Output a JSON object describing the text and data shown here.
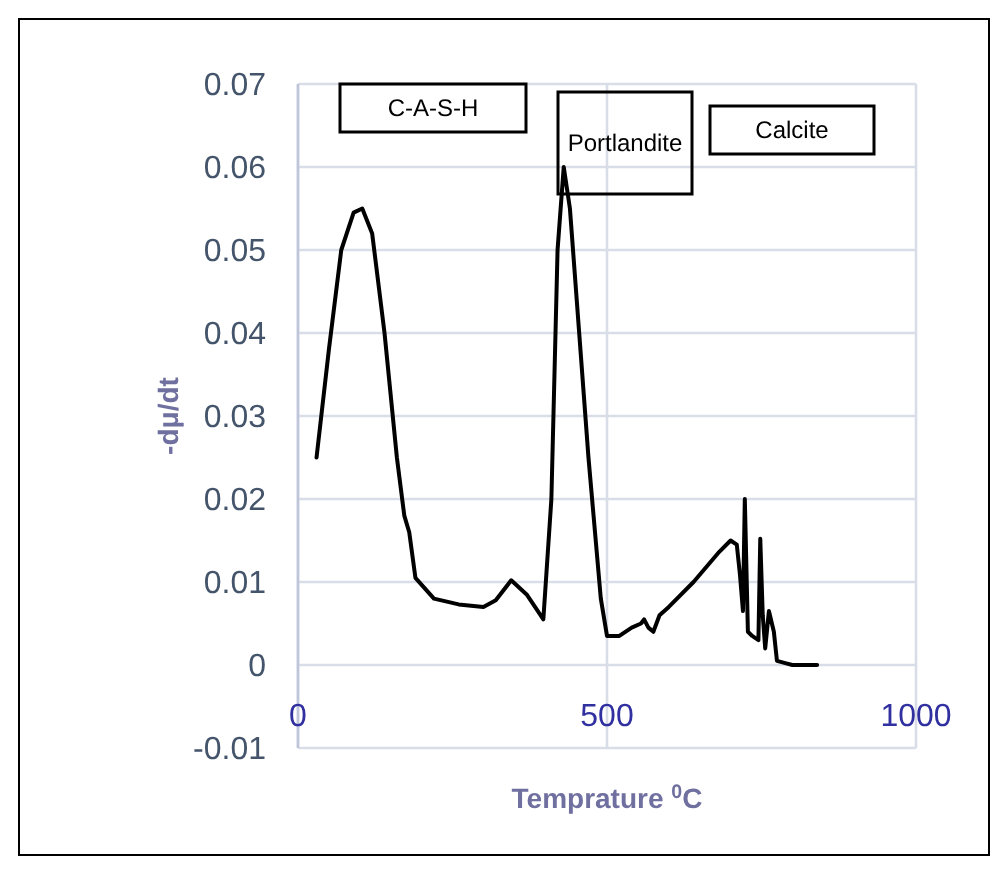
{
  "chart_data": {
    "type": "line",
    "xlabel": "Temprature $^{0}$C",
    "ylabel": "-dμ/dt",
    "xlim": [
      0,
      1000
    ],
    "xticks": [
      0,
      500,
      1000
    ],
    "ylim": [
      -0.01,
      0.07
    ],
    "yticks": [
      -0.01,
      0,
      0.01,
      0.02,
      0.03,
      0.04,
      0.05,
      0.06,
      0.07
    ],
    "grid": true,
    "marker": "none",
    "line_style": "solid",
    "annotations": [
      "C-A-S-H",
      "Portlandite",
      "Calcite"
    ],
    "series": [
      {
        "color": "#000000",
        "x": [
          30,
          50,
          70,
          90,
          104,
          120,
          140,
          160,
          172,
          180,
          190,
          220,
          260,
          300,
          320,
          345,
          370,
          397,
          410,
          420,
          430,
          440,
          455,
          470,
          490,
          500,
          520,
          540,
          555,
          560,
          567,
          575,
          585,
          600,
          640,
          680,
          700,
          710,
          715,
          720,
          723,
          728,
          735,
          745,
          748,
          752,
          756,
          762,
          770,
          775,
          790,
          800,
          840
        ],
        "values": [
          0.025,
          0.038,
          0.05,
          0.0545,
          0.055,
          0.052,
          0.04,
          0.025,
          0.018,
          0.016,
          0.0105,
          0.008,
          0.0073,
          0.007,
          0.0078,
          0.0102,
          0.0085,
          0.0055,
          0.02,
          0.05,
          0.06,
          0.055,
          0.04,
          0.025,
          0.008,
          0.0035,
          0.0035,
          0.0045,
          0.005,
          0.0055,
          0.0045,
          0.004,
          0.006,
          0.007,
          0.01,
          0.0135,
          0.015,
          0.0145,
          0.011,
          0.0065,
          0.02,
          0.004,
          0.0035,
          0.003,
          0.0152,
          0.006,
          0.002,
          0.0065,
          0.004,
          0.0005,
          0.0002,
          0,
          0
        ]
      }
    ]
  }
}
